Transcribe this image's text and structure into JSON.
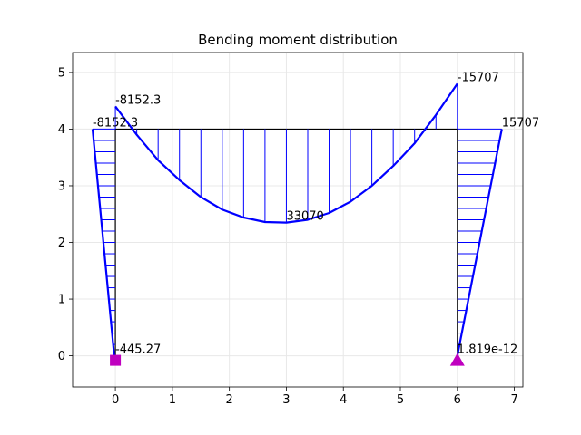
{
  "chart_data": {
    "type": "line",
    "title": "Bending moment distribution",
    "xlabel": "",
    "ylabel": "",
    "xlim": [
      -0.75,
      7.15
    ],
    "ylim": [
      -0.55,
      5.35
    ],
    "xticks": [
      "0",
      "1",
      "2",
      "3",
      "4",
      "5",
      "6",
      "7"
    ],
    "yticks": [
      "0",
      "1",
      "2",
      "3",
      "4",
      "5"
    ],
    "grid": true,
    "colors": {
      "diagram": "#0000ff",
      "frame": "#000000",
      "support": "#bf00bf"
    },
    "structure": [
      {
        "name": "left-column",
        "x": [
          0,
          0
        ],
        "y": [
          0,
          4
        ]
      },
      {
        "name": "beam",
        "x": [
          0,
          6
        ],
        "y": [
          4,
          4
        ]
      },
      {
        "name": "right-column",
        "x": [
          6,
          6
        ],
        "y": [
          4,
          0
        ]
      }
    ],
    "series": [
      {
        "member": "left-column",
        "x": [
          -0.4,
          -0.02
        ],
        "y": [
          4.0,
          0.0
        ],
        "base_x": [
          0,
          0
        ],
        "base_y": [
          4,
          0
        ]
      },
      {
        "member": "beam",
        "x": [
          0.0,
          0.375,
          0.75,
          1.125,
          1.5,
          1.875,
          2.25,
          2.625,
          3.0,
          3.375,
          3.75,
          4.125,
          4.5,
          4.875,
          5.25,
          5.625,
          6.0
        ],
        "y": [
          4.4,
          3.9,
          3.45,
          3.1,
          2.8,
          2.58,
          2.44,
          2.36,
          2.35,
          2.4,
          2.52,
          2.72,
          3.0,
          3.35,
          3.75,
          4.25,
          4.8
        ],
        "base_y": 4
      },
      {
        "member": "right-column",
        "x": [
          6.78,
          6.0
        ],
        "y": [
          4.0,
          0.0
        ],
        "base_x": [
          6,
          6
        ],
        "base_y": [
          4,
          0
        ]
      }
    ],
    "annotations": [
      {
        "text": "-8152.3",
        "x": -0.4,
        "y": 4.0
      },
      {
        "text": "-8152.3",
        "x": 0.0,
        "y": 4.4
      },
      {
        "text": "-445.27",
        "x": 0.0,
        "y": 0.0
      },
      {
        "text": "33070",
        "x": 3.0,
        "y": 2.35
      },
      {
        "text": "-15707",
        "x": 6.0,
        "y": 4.8
      },
      {
        "text": "15707",
        "x": 6.78,
        "y": 4.0
      },
      {
        "text": "1.819e-12",
        "x": 6.0,
        "y": 0.0
      }
    ],
    "supports": [
      {
        "type": "square",
        "x": 0,
        "y": -0.08
      },
      {
        "type": "triangle",
        "x": 6,
        "y": -0.08
      }
    ]
  }
}
